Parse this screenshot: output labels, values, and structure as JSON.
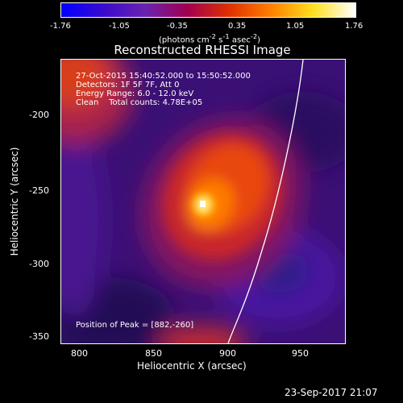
{
  "colorbar": {
    "ticks": [
      "-1.76",
      "-1.05",
      "-0.35",
      "0.35",
      "1.05",
      "1.76"
    ],
    "units_prefix": "(photons cm",
    "units_sup1": "-2",
    "units_mid1": " s",
    "units_sup2": "-1",
    "units_mid2": " asec",
    "units_sup3": "-2",
    "units_suffix": ")"
  },
  "title": "Reconstructed RHESSI Image",
  "info": {
    "time": "27-Oct-2015 15:40:52.000 to 15:50:52.000",
    "detectors": "Detectors: 1F 5F 7F, Att 0",
    "energy": "Energy Range: 6.0 - 12.0 keV",
    "clean": "Clean    Total counts: 4.78E+05",
    "peak": "Position of Peak = [882,-260]"
  },
  "axes": {
    "ylabel": "Heliocentric  Y  (arcsec)",
    "xlabel": "Heliocentric X (arcsec)",
    "yticks": [
      "-200",
      "-250",
      "-300",
      "-350"
    ],
    "xticks": [
      "800",
      "850",
      "900",
      "950"
    ]
  },
  "footer": "23-Sep-2017 21:07",
  "colors": {
    "colorbar_stops": [
      "#0000ff",
      "#3a0ad0",
      "#6a22b0",
      "#a00050",
      "#e03000",
      "#ff8000",
      "#ffe020",
      "#ffffff"
    ],
    "background": "#000000",
    "axis": "#ffffff",
    "limb": "#ffffff"
  }
}
